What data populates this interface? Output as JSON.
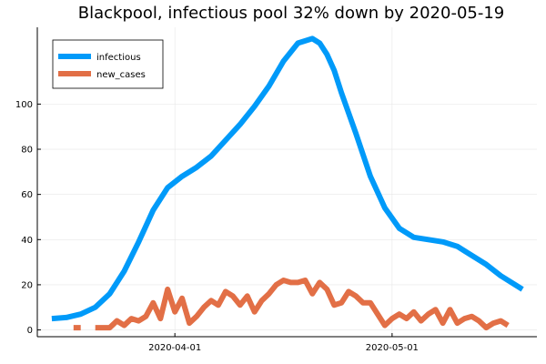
{
  "chart_data": {
    "type": "line",
    "title": "Blackpool, infectious pool 32% down by 2020-05-19",
    "xlabel": "",
    "ylabel": "",
    "x_ticks": [
      "2020-04-01",
      "2020-05-01"
    ],
    "y_ticks": [
      0,
      20,
      40,
      60,
      80,
      100
    ],
    "xlim": [
      "2020-03-13",
      "2020-05-21"
    ],
    "ylim": [
      -3,
      134
    ],
    "grid": true,
    "legend_position": "top-left",
    "x_start": "2020-03-15",
    "series": [
      {
        "name": "infectious",
        "color": "#009AF9",
        "dates": [
          "2020-03-15",
          "2020-03-17",
          "2020-03-19",
          "2020-03-21",
          "2020-03-23",
          "2020-03-25",
          "2020-03-27",
          "2020-03-29",
          "2020-03-31",
          "2020-04-02",
          "2020-04-04",
          "2020-04-06",
          "2020-04-08",
          "2020-04-10",
          "2020-04-12",
          "2020-04-14",
          "2020-04-16",
          "2020-04-18",
          "2020-04-20",
          "2020-04-21",
          "2020-04-22",
          "2020-04-23",
          "2020-04-24",
          "2020-04-26",
          "2020-04-28",
          "2020-04-30",
          "2020-05-02",
          "2020-05-04",
          "2020-05-06",
          "2020-05-08",
          "2020-05-10",
          "2020-05-12",
          "2020-05-14",
          "2020-05-16",
          "2020-05-18",
          "2020-05-19"
        ],
        "values": [
          5,
          5.5,
          7,
          10,
          16,
          26,
          39,
          53,
          63,
          68,
          72,
          77,
          84,
          91,
          99,
          108,
          119,
          127,
          129,
          127,
          122,
          115,
          105,
          87,
          68,
          54,
          45,
          41,
          40,
          39,
          37,
          33,
          29,
          24,
          20,
          18
        ]
      },
      {
        "name": "new_cases",
        "color": "#E26F46",
        "dates": [
          "2020-03-18",
          "2020-03-19",
          null,
          "2020-03-21",
          "2020-03-22",
          "2020-03-23",
          "2020-03-24",
          "2020-03-25",
          "2020-03-26",
          "2020-03-27",
          "2020-03-28",
          "2020-03-29",
          "2020-03-30",
          "2020-03-31",
          "2020-04-01",
          "2020-04-02",
          "2020-04-03",
          "2020-04-04",
          "2020-04-05",
          "2020-04-06",
          "2020-04-07",
          "2020-04-08",
          "2020-04-09",
          "2020-04-10",
          "2020-04-11",
          "2020-04-12",
          "2020-04-13",
          "2020-04-14",
          "2020-04-15",
          "2020-04-16",
          "2020-04-17",
          "2020-04-18",
          "2020-04-19",
          "2020-04-20",
          "2020-04-21",
          "2020-04-22",
          "2020-04-23",
          "2020-04-24",
          "2020-04-25",
          "2020-04-26",
          "2020-04-27",
          "2020-04-28",
          "2020-04-29",
          "2020-04-30",
          "2020-05-01",
          "2020-05-02",
          "2020-05-03",
          "2020-05-04",
          "2020-05-05",
          "2020-05-06",
          "2020-05-07",
          "2020-05-08",
          "2020-05-09",
          "2020-05-10",
          "2020-05-11",
          "2020-05-12",
          "2020-05-13",
          "2020-05-14",
          "2020-05-15",
          "2020-05-16",
          "2020-05-17",
          "2020-05-18",
          "2020-05-19"
        ],
        "values": [
          1,
          1,
          null,
          1,
          1,
          1,
          4,
          2,
          5,
          4,
          6,
          12,
          5,
          18,
          8,
          14,
          3,
          6,
          10,
          13,
          11,
          17,
          15,
          11,
          15,
          8,
          13,
          16,
          20,
          22,
          21,
          21,
          22,
          16,
          21,
          18,
          11,
          12,
          17,
          15,
          12,
          12,
          7,
          2,
          5,
          7,
          5,
          8,
          4,
          7,
          9,
          3,
          9,
          3,
          5,
          6,
          4,
          1,
          3,
          4,
          2,
          null,
          null
        ]
      }
    ]
  }
}
